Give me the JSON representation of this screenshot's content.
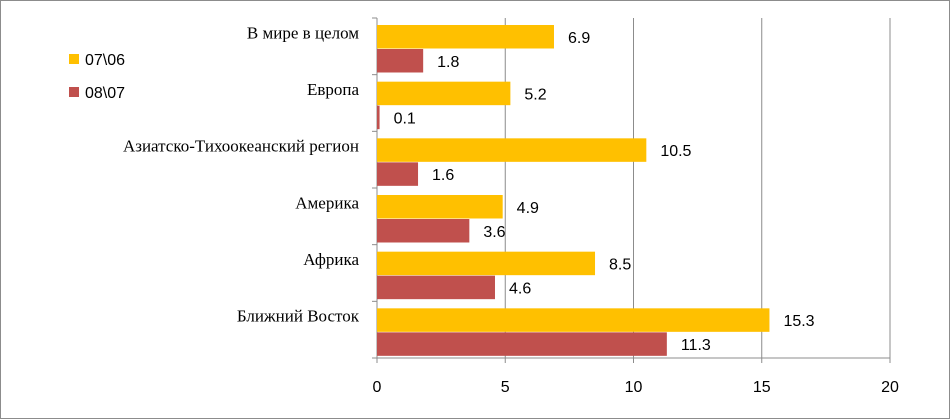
{
  "chart_data": {
    "type": "bar",
    "orientation": "horizontal",
    "categories": [
      "В мире в целом",
      "Европа",
      "Азиатско-Тихоокеанский регион",
      "Америка",
      "Африка",
      "Ближний Восток"
    ],
    "series": [
      {
        "name": "07\\06",
        "color": "#FFC000",
        "values": [
          6.9,
          5.2,
          10.5,
          4.9,
          8.5,
          15.3
        ]
      },
      {
        "name": "08\\07",
        "color": "#C0504D",
        "values": [
          1.8,
          0.1,
          1.6,
          3.6,
          4.6,
          11.3
        ]
      }
    ],
    "x_ticks": [
      0,
      5,
      10,
      15,
      20
    ],
    "xlim": [
      0,
      20
    ],
    "grid": true,
    "legend_position": "top-left",
    "data_labels": true
  }
}
